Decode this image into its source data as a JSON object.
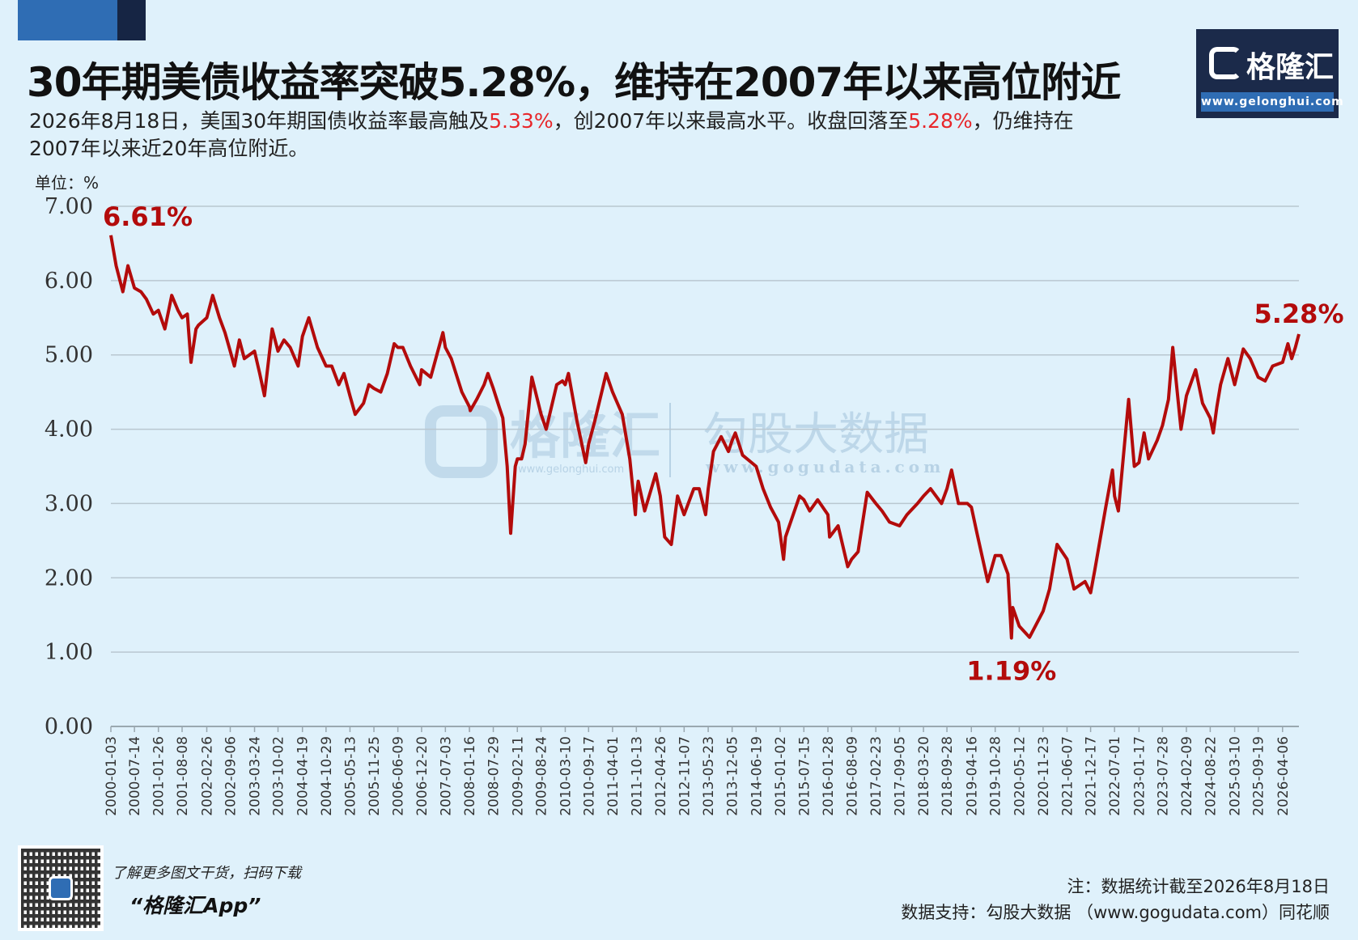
{
  "header": {
    "title": "30年期美债收益率突破5.28%，维持在2007年以来高位附近",
    "subtitle_1": "2026年8月18日，美国30年期国债收益率最高触及",
    "subtitle_hl_1": "5.33%",
    "subtitle_2": "，创2007年以来最高水平。收盘回落至",
    "subtitle_hl_2": "5.28%",
    "subtitle_3": "，仍维持在2007年以来近20年高位附近。"
  },
  "logo": {
    "name": "格隆汇",
    "url": "www.gelonghui.com"
  },
  "watermark": {
    "brand_1": "格隆汇",
    "brand_1_url": "www.gelonghui.com",
    "brand_2": "勾股大数据",
    "brand_2_url": "www.gogudata.com"
  },
  "footer": {
    "promo_line": "了解更多图文干货，扫码下载",
    "app_name": "“格隆汇App”",
    "note": "注：数据统计截至2026年8月18日",
    "source": "数据支持：勾股大数据 （www.gogudata.com）同花顺"
  },
  "colors": {
    "line": "#b30b0b",
    "annotation": "#b30b0b",
    "highlight": "#e8262a",
    "grid": "#b9c7d0",
    "background": "#dff1fb"
  },
  "chart_data": {
    "type": "line",
    "unit_label": "单位：%",
    "ylim": [
      0,
      7
    ],
    "yticks": [
      "0.00",
      "1.00",
      "2.00",
      "3.00",
      "4.00",
      "5.00",
      "6.00",
      "7.00"
    ],
    "grid": "horizontal",
    "x_tick_labels": [
      "2000-01-03",
      "2000-07-14",
      "2001-01-26",
      "2001-08-08",
      "2002-02-26",
      "2002-09-06",
      "2003-03-24",
      "2003-10-02",
      "2004-04-19",
      "2004-10-29",
      "2005-05-13",
      "2005-11-25",
      "2006-06-09",
      "2006-12-20",
      "2007-07-03",
      "2008-01-16",
      "2008-07-29",
      "2009-02-11",
      "2009-08-24",
      "2010-03-10",
      "2010-09-17",
      "2011-04-01",
      "2011-10-13",
      "2012-04-26",
      "2012-11-07",
      "2013-05-23",
      "2013-12-05",
      "2014-06-19",
      "2015-01-02",
      "2015-07-15",
      "2016-01-28",
      "2016-08-09",
      "2017-02-23",
      "2017-09-05",
      "2018-03-20",
      "2018-09-28",
      "2019-04-16",
      "2019-10-28",
      "2020-05-12",
      "2020-11-23",
      "2021-06-07",
      "2021-12-17",
      "2022-07-01",
      "2023-01-17",
      "2023-07-28",
      "2024-02-09",
      "2024-08-22",
      "2025-03-10",
      "2025-09-19",
      "2026-04-06"
    ],
    "series": [
      {
        "points": [
          [
            "2000-01-03",
            6.61
          ],
          [
            "2000-02-15",
            6.2
          ],
          [
            "2000-04-10",
            5.85
          ],
          [
            "2000-05-22",
            6.2
          ],
          [
            "2000-07-14",
            5.9
          ],
          [
            "2000-09-05",
            5.85
          ],
          [
            "2000-10-20",
            5.75
          ],
          [
            "2000-12-15",
            5.55
          ],
          [
            "2001-01-26",
            5.6
          ],
          [
            "2001-03-20",
            5.35
          ],
          [
            "2001-05-15",
            5.8
          ],
          [
            "2001-07-05",
            5.6
          ],
          [
            "2001-08-08",
            5.5
          ],
          [
            "2001-09-20",
            5.55
          ],
          [
            "2001-10-20",
            4.9
          ],
          [
            "2001-11-30",
            5.35
          ],
          [
            "2001-12-20",
            5.4
          ],
          [
            "2002-02-26",
            5.5
          ],
          [
            "2002-04-15",
            5.8
          ],
          [
            "2002-06-10",
            5.5
          ],
          [
            "2002-07-25",
            5.3
          ],
          [
            "2002-09-06",
            5.05
          ],
          [
            "2002-10-10",
            4.85
          ],
          [
            "2002-11-20",
            5.2
          ],
          [
            "2002-12-30",
            4.95
          ],
          [
            "2003-03-24",
            5.05
          ],
          [
            "2003-05-05",
            4.75
          ],
          [
            "2003-06-13",
            4.45
          ],
          [
            "2003-08-15",
            5.35
          ],
          [
            "2003-10-02",
            5.05
          ],
          [
            "2003-11-20",
            5.2
          ],
          [
            "2004-01-10",
            5.1
          ],
          [
            "2004-03-15",
            4.85
          ],
          [
            "2004-04-19",
            5.25
          ],
          [
            "2004-06-10",
            5.5
          ],
          [
            "2004-08-20",
            5.1
          ],
          [
            "2004-10-29",
            4.85
          ],
          [
            "2004-12-15",
            4.85
          ],
          [
            "2005-02-10",
            4.6
          ],
          [
            "2005-03-25",
            4.75
          ],
          [
            "2005-05-13",
            4.45
          ],
          [
            "2005-06-25",
            4.2
          ],
          [
            "2005-09-01",
            4.35
          ],
          [
            "2005-10-15",
            4.6
          ],
          [
            "2005-11-25",
            4.55
          ],
          [
            "2006-01-20",
            4.5
          ],
          [
            "2006-03-15",
            4.75
          ],
          [
            "2006-05-10",
            5.15
          ],
          [
            "2006-06-09",
            5.1
          ],
          [
            "2006-07-20",
            5.1
          ],
          [
            "2006-09-20",
            4.85
          ],
          [
            "2006-12-05",
            4.6
          ],
          [
            "2006-12-20",
            4.8
          ],
          [
            "2007-03-05",
            4.7
          ],
          [
            "2007-06-13",
            5.3
          ],
          [
            "2007-07-03",
            5.1
          ],
          [
            "2007-08-20",
            4.95
          ],
          [
            "2007-11-15",
            4.5
          ],
          [
            "2008-01-16",
            4.3
          ],
          [
            "2008-01-23",
            4.25
          ],
          [
            "2008-03-15",
            4.4
          ],
          [
            "2008-05-15",
            4.6
          ],
          [
            "2008-06-15",
            4.75
          ],
          [
            "2008-07-29",
            4.55
          ],
          [
            "2008-09-15",
            4.3
          ],
          [
            "2008-10-15",
            4.15
          ],
          [
            "2008-11-20",
            3.5
          ],
          [
            "2008-12-18",
            2.6
          ],
          [
            "2009-01-25",
            3.5
          ],
          [
            "2009-02-11",
            3.6
          ],
          [
            "2009-03-18",
            3.6
          ],
          [
            "2009-04-15",
            3.8
          ],
          [
            "2009-06-10",
            4.7
          ],
          [
            "2009-08-24",
            4.2
          ],
          [
            "2009-10-05",
            4.0
          ],
          [
            "2009-12-30",
            4.6
          ],
          [
            "2010-02-15",
            4.65
          ],
          [
            "2010-03-10",
            4.6
          ],
          [
            "2010-04-05",
            4.75
          ],
          [
            "2010-06-15",
            4.1
          ],
          [
            "2010-08-24",
            3.55
          ],
          [
            "2010-09-17",
            3.8
          ],
          [
            "2010-11-05",
            4.1
          ],
          [
            "2011-01-10",
            4.55
          ],
          [
            "2011-02-08",
            4.75
          ],
          [
            "2011-04-01",
            4.5
          ],
          [
            "2011-06-20",
            4.2
          ],
          [
            "2011-08-20",
            3.6
          ],
          [
            "2011-10-05",
            2.85
          ],
          [
            "2011-10-13",
            3.1
          ],
          [
            "2011-10-28",
            3.3
          ],
          [
            "2011-12-20",
            2.9
          ],
          [
            "2012-03-20",
            3.4
          ],
          [
            "2012-04-26",
            3.1
          ],
          [
            "2012-06-01",
            2.55
          ],
          [
            "2012-07-25",
            2.45
          ],
          [
            "2012-09-14",
            3.1
          ],
          [
            "2012-11-07",
            2.85
          ],
          [
            "2013-01-25",
            3.2
          ],
          [
            "2013-03-10",
            3.2
          ],
          [
            "2013-05-02",
            2.85
          ],
          [
            "2013-05-23",
            3.2
          ],
          [
            "2013-07-05",
            3.7
          ],
          [
            "2013-09-06",
            3.9
          ],
          [
            "2013-11-05",
            3.7
          ],
          [
            "2013-12-05",
            3.85
          ],
          [
            "2013-12-31",
            3.95
          ],
          [
            "2014-03-01",
            3.65
          ],
          [
            "2014-06-19",
            3.5
          ],
          [
            "2014-08-15",
            3.2
          ],
          [
            "2014-10-15",
            2.95
          ],
          [
            "2014-12-20",
            2.75
          ],
          [
            "2015-01-30",
            2.25
          ],
          [
            "2015-02-15",
            2.55
          ],
          [
            "2015-06-10",
            3.1
          ],
          [
            "2015-07-15",
            3.05
          ],
          [
            "2015-09-01",
            2.9
          ],
          [
            "2015-11-05",
            3.05
          ],
          [
            "2016-01-28",
            2.85
          ],
          [
            "2016-02-11",
            2.55
          ],
          [
            "2016-04-20",
            2.7
          ],
          [
            "2016-07-08",
            2.15
          ],
          [
            "2016-08-09",
            2.25
          ],
          [
            "2016-10-01",
            2.35
          ],
          [
            "2016-12-15",
            3.15
          ],
          [
            "2017-02-23",
            3.0
          ],
          [
            "2017-04-15",
            2.9
          ],
          [
            "2017-06-15",
            2.75
          ],
          [
            "2017-09-05",
            2.7
          ],
          [
            "2017-11-05",
            2.85
          ],
          [
            "2018-01-30",
            3.0
          ],
          [
            "2018-03-20",
            3.1
          ],
          [
            "2018-05-17",
            3.2
          ],
          [
            "2018-08-15",
            3.0
          ],
          [
            "2018-09-28",
            3.2
          ],
          [
            "2018-11-05",
            3.45
          ],
          [
            "2018-12-31",
            3.0
          ],
          [
            "2019-03-15",
            3.0
          ],
          [
            "2019-04-16",
            2.95
          ],
          [
            "2019-06-01",
            2.6
          ],
          [
            "2019-08-28",
            1.95
          ],
          [
            "2019-10-28",
            2.3
          ],
          [
            "2019-12-15",
            2.3
          ],
          [
            "2020-02-10",
            2.05
          ],
          [
            "2020-03-09",
            1.19
          ],
          [
            "2020-03-20",
            1.6
          ],
          [
            "2020-05-12",
            1.35
          ],
          [
            "2020-08-04",
            1.2
          ],
          [
            "2020-11-23",
            1.55
          ],
          [
            "2021-01-15",
            1.85
          ],
          [
            "2021-03-18",
            2.45
          ],
          [
            "2021-06-07",
            2.25
          ],
          [
            "2021-08-03",
            1.85
          ],
          [
            "2021-11-01",
            1.95
          ],
          [
            "2021-12-17",
            1.8
          ],
          [
            "2022-01-20",
            2.1
          ],
          [
            "2022-04-20",
            2.95
          ],
          [
            "2022-06-14",
            3.45
          ],
          [
            "2022-07-01",
            3.1
          ],
          [
            "2022-08-01",
            2.9
          ],
          [
            "2022-10-24",
            4.4
          ],
          [
            "2022-12-10",
            3.5
          ],
          [
            "2023-01-17",
            3.55
          ],
          [
            "2023-02-28",
            3.95
          ],
          [
            "2023-04-05",
            3.6
          ],
          [
            "2023-06-15",
            3.85
          ],
          [
            "2023-07-28",
            4.05
          ],
          [
            "2023-09-15",
            4.4
          ],
          [
            "2023-10-20",
            5.1
          ],
          [
            "2023-12-27",
            4.0
          ],
          [
            "2024-02-09",
            4.45
          ],
          [
            "2024-04-25",
            4.8
          ],
          [
            "2024-06-20",
            4.35
          ],
          [
            "2024-08-22",
            4.15
          ],
          [
            "2024-09-16",
            3.95
          ],
          [
            "2024-10-15",
            4.3
          ],
          [
            "2024-11-15",
            4.6
          ],
          [
            "2025-01-14",
            4.95
          ],
          [
            "2025-03-10",
            4.6
          ],
          [
            "2025-05-20",
            5.08
          ],
          [
            "2025-07-15",
            4.95
          ],
          [
            "2025-09-19",
            4.7
          ],
          [
            "2025-11-15",
            4.65
          ],
          [
            "2026-01-15",
            4.85
          ],
          [
            "2026-04-06",
            4.9
          ],
          [
            "2026-05-20",
            5.15
          ],
          [
            "2026-06-20",
            4.95
          ],
          [
            "2026-07-20",
            5.1
          ],
          [
            "2026-08-18",
            5.28
          ]
        ]
      }
    ],
    "annotations": [
      {
        "text": "6.61%",
        "date": "2000-01-03",
        "value": 6.61
      },
      {
        "text": "1.19%",
        "date": "2020-03-09",
        "value": 1.19
      },
      {
        "text": "5.28%",
        "date": "2026-08-18",
        "value": 5.28
      }
    ]
  }
}
